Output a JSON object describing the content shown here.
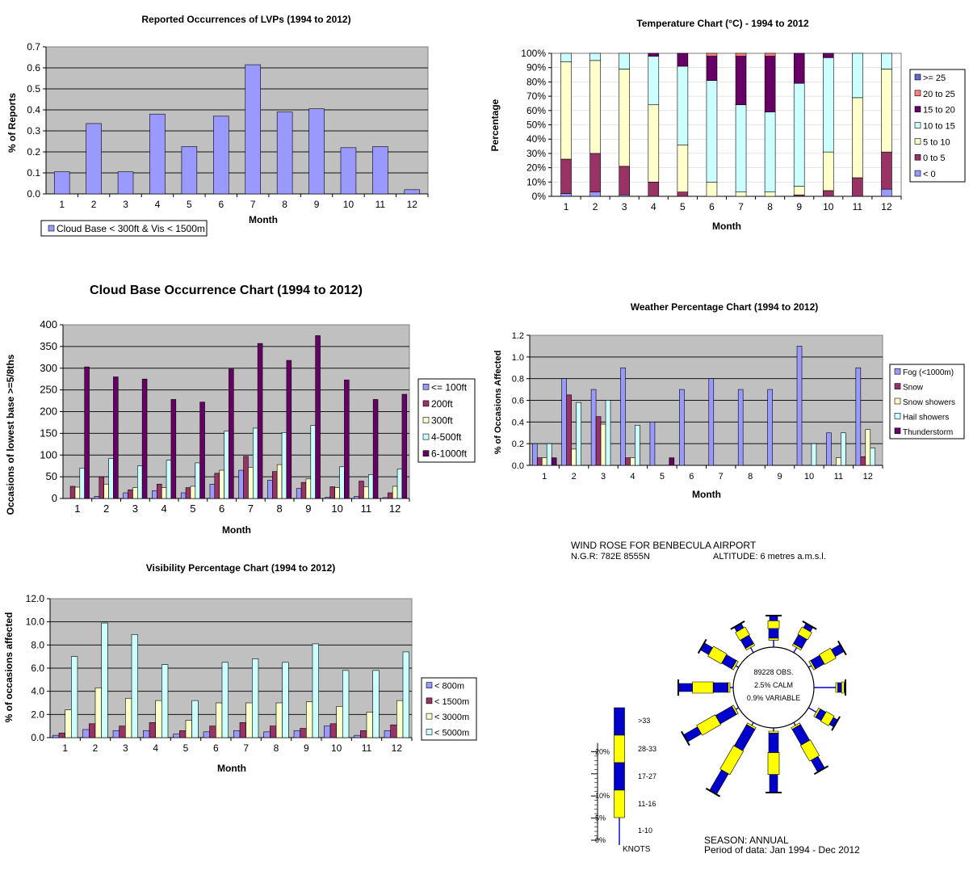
{
  "chart_data": [
    {
      "type": "bar",
      "title": "Reported Occurrences of LVPs (1994 to 2012)",
      "xlabel": "Month",
      "ylabel": "% of Reports",
      "ylim": [
        0,
        0.7
      ],
      "yticks": [
        "0.0",
        "0.1",
        "0.2",
        "0.3",
        "0.4",
        "0.5",
        "0.6",
        "0.7"
      ],
      "categories": [
        "1",
        "2",
        "3",
        "4",
        "5",
        "6",
        "7",
        "8",
        "9",
        "10",
        "11",
        "12"
      ],
      "series": [
        {
          "name": "Cloud Base < 300ft & Vis < 1500m",
          "color": "#9999FF",
          "values": [
            0.105,
            0.335,
            0.105,
            0.38,
            0.225,
            0.37,
            0.615,
            0.39,
            0.405,
            0.22,
            0.225,
            0.02
          ]
        }
      ],
      "grid": true,
      "legend": "bottom-left"
    },
    {
      "type": "bar",
      "stacked": true,
      "title": "Temperature Chart (°C) - 1994 to 2012",
      "xlabel": "Month",
      "ylabel": "Percentage",
      "ylim": [
        0,
        100
      ],
      "yticks": [
        "0%",
        "10%",
        "20%",
        "30%",
        "40%",
        "50%",
        "60%",
        "70%",
        "80%",
        "90%",
        "100%"
      ],
      "categories": [
        "1",
        "2",
        "3",
        "4",
        "5",
        "6",
        "7",
        "8",
        "9",
        "10",
        "11",
        "12"
      ],
      "series": [
        {
          "name": "< 0",
          "color": "#9999FF",
          "values": [
            2,
            3,
            1,
            0,
            0,
            0,
            0,
            0,
            0,
            0,
            0,
            5
          ]
        },
        {
          "name": "0 to 5",
          "color": "#993366",
          "values": [
            24,
            27,
            20,
            10,
            3,
            0,
            0,
            0,
            1,
            4,
            13,
            26
          ]
        },
        {
          "name": "5 to 10",
          "color": "#FFFFCC",
          "values": [
            68,
            65,
            68,
            54,
            33,
            10,
            3,
            3,
            6,
            27,
            56,
            58
          ]
        },
        {
          "name": "10 to 15",
          "color": "#CCFFFF",
          "values": [
            6,
            5,
            11,
            34,
            55,
            71,
            61,
            56,
            72,
            66,
            31,
            11
          ]
        },
        {
          "name": "15 to 20",
          "color": "#660066",
          "values": [
            0,
            0,
            0,
            2,
            9,
            17,
            34,
            39,
            21,
            3,
            0,
            0
          ]
        },
        {
          "name": "20 to 25",
          "color": "#FF8080",
          "values": [
            0,
            0,
            0,
            0,
            0,
            2,
            2,
            2,
            0,
            0,
            0,
            0
          ]
        },
        {
          "name": ">= 25",
          "color": "#6666CC",
          "values": [
            0,
            0,
            0,
            0,
            0,
            0,
            0,
            0,
            0,
            0,
            0,
            0
          ]
        }
      ],
      "legend": "right"
    },
    {
      "type": "bar",
      "title": "Cloud Base Occurrence Chart (1994 to 2012)",
      "xlabel": "Month",
      "ylabel": "Occasions of lowest base >=5/8ths",
      "ylim": [
        0,
        400
      ],
      "yticks": [
        "0",
        "50",
        "100",
        "150",
        "200",
        "250",
        "300",
        "350",
        "400"
      ],
      "categories": [
        "1",
        "2",
        "3",
        "4",
        "5",
        "6",
        "7",
        "8",
        "9",
        "10",
        "11",
        "12"
      ],
      "series": [
        {
          "name": "<= 100ft",
          "color": "#9999FF",
          "values": [
            0,
            5,
            13,
            18,
            13,
            33,
            65,
            42,
            23,
            3,
            5,
            2
          ]
        },
        {
          "name": "200ft",
          "color": "#993366",
          "values": [
            28,
            50,
            20,
            33,
            25,
            58,
            97,
            62,
            37,
            27,
            40,
            13
          ]
        },
        {
          "name": "300ft",
          "color": "#FFFFCC",
          "values": [
            26,
            33,
            25,
            25,
            28,
            65,
            72,
            78,
            45,
            25,
            27,
            28
          ]
        },
        {
          "name": "4-500ft",
          "color": "#CCFFFF",
          "values": [
            70,
            92,
            75,
            88,
            82,
            155,
            162,
            152,
            168,
            73,
            55,
            68
          ]
        },
        {
          "name": "6-1000ft",
          "color": "#660066",
          "values": [
            303,
            280,
            275,
            228,
            222,
            298,
            357,
            318,
            375,
            273,
            228,
            240
          ]
        }
      ],
      "grid": true,
      "legend": "right"
    },
    {
      "type": "bar",
      "title": "Weather Percentage Chart (1994 to 2012)",
      "xlabel": "Month",
      "ylabel": "% of Occasions Affected",
      "ylim": [
        0,
        1.2
      ],
      "yticks": [
        "0.0",
        "0.2",
        "0.4",
        "0.6",
        "0.8",
        "1.0",
        "1.2"
      ],
      "categories": [
        "1",
        "2",
        "3",
        "4",
        "5",
        "6",
        "7",
        "8",
        "9",
        "10",
        "11",
        "12"
      ],
      "series": [
        {
          "name": "Fog (<1000m)",
          "color": "#9999FF",
          "values": [
            0.2,
            0.8,
            0.7,
            0.9,
            0.4,
            0.7,
            0.8,
            0.7,
            0.7,
            1.1,
            0.3,
            0.9
          ]
        },
        {
          "name": "Snow",
          "color": "#993366",
          "values": [
            0.07,
            0.65,
            0.45,
            0.07,
            0,
            0,
            0,
            0,
            0,
            0,
            0,
            0.08
          ]
        },
        {
          "name": "Snow showers",
          "color": "#FFFFCC",
          "values": [
            0.07,
            0.15,
            0.38,
            0.07,
            0,
            0,
            0,
            0,
            0,
            0,
            0.07,
            0.33
          ]
        },
        {
          "name": "Hail showers",
          "color": "#CCFFFF",
          "values": [
            0.2,
            0.58,
            0.6,
            0.37,
            0,
            0,
            0,
            0,
            0,
            0.2,
            0.3,
            0.16
          ]
        },
        {
          "name": "Thunderstorm",
          "color": "#660066",
          "values": [
            0.07,
            0,
            0,
            0,
            0.07,
            0,
            0,
            0,
            0,
            0,
            0,
            0
          ]
        }
      ],
      "grid": true,
      "legend": "right"
    },
    {
      "type": "bar",
      "title": "Visibility Percentage Chart (1994 to 2012)",
      "xlabel": "Month",
      "ylabel": "% of occasions affected",
      "ylim": [
        0,
        12
      ],
      "yticks": [
        "0.0",
        "2.0",
        "4.0",
        "6.0",
        "8.0",
        "10.0",
        "12.0"
      ],
      "categories": [
        "1",
        "2",
        "3",
        "4",
        "5",
        "6",
        "7",
        "8",
        "9",
        "10",
        "11",
        "12"
      ],
      "series": [
        {
          "name": "< 800m",
          "color": "#9999FF",
          "values": [
            0.2,
            0.7,
            0.6,
            0.6,
            0.3,
            0.5,
            0.6,
            0.5,
            0.6,
            1.0,
            0.2,
            0.6
          ]
        },
        {
          "name": "< 1500m",
          "color": "#993366",
          "values": [
            0.4,
            1.2,
            1.0,
            1.3,
            0.6,
            1.0,
            1.3,
            1.0,
            0.8,
            1.2,
            0.6,
            1.1
          ]
        },
        {
          "name": "< 3000m",
          "color": "#FFFFCC",
          "values": [
            2.4,
            4.3,
            3.4,
            3.2,
            1.5,
            3.0,
            3.0,
            3.0,
            3.1,
            2.7,
            2.2,
            3.2
          ]
        },
        {
          "name": "< 5000m",
          "color": "#CCFFFF",
          "values": [
            7.0,
            9.9,
            8.9,
            6.3,
            3.2,
            6.5,
            6.8,
            6.5,
            8.1,
            5.8,
            5.8,
            7.4
          ]
        }
      ],
      "grid": true,
      "legend": "right"
    }
  ],
  "windrose": {
    "title": "WIND ROSE FOR BENBECULA AIRPORT",
    "ngr": "N.G.R:  782E  8555N",
    "altitude": "ALTITUDE:    6 metres a.m.s.l.",
    "center_lines": [
      "89228 OBS.",
      "2.5% CALM",
      "0.9% VARIABLE"
    ],
    "season": "SEASON: ANNUAL",
    "period": "Period of data: Jan 1994 - Dec 2012",
    "colors": {
      "dark": "#0000CC",
      "light": "#FFFF00",
      "arm": "#0000CC"
    },
    "scale_labels": [
      "20%",
      "10%",
      "5%",
      "0%"
    ],
    "speed_labels": [
      ">33",
      "28-33",
      "17-27",
      "11-16",
      "1-10"
    ],
    "speed_unit": "KNOTS",
    "directions": [
      {
        "deg": 0,
        "total": 4.0,
        "segs": [
          0.3,
          1.5,
          1.2,
          0.8
        ]
      },
      {
        "deg": 30,
        "total": 4.0,
        "segs": [
          0.3,
          1.6,
          1.3,
          0.8
        ]
      },
      {
        "deg": 60,
        "total": 5.5,
        "segs": [
          0.3,
          1.6,
          2.0,
          1.6
        ]
      },
      {
        "deg": 90,
        "total": 1.5,
        "segs": [
          0.3,
          0.6,
          0.4,
          0.2
        ]
      },
      {
        "deg": 120,
        "total": 3.5,
        "segs": [
          0.3,
          1.0,
          1.4,
          0.8
        ]
      },
      {
        "deg": 150,
        "total": 8.0,
        "segs": [
          0.3,
          2.8,
          2.8,
          2.1
        ]
      },
      {
        "deg": 180,
        "total": 9.5,
        "segs": [
          0.3,
          3.0,
          3.4,
          2.8
        ]
      },
      {
        "deg": 210,
        "total": 12.0,
        "segs": [
          0.3,
          3.8,
          4.2,
          3.7
        ]
      },
      {
        "deg": 240,
        "total": 9.0,
        "segs": [
          0.3,
          2.9,
          3.3,
          2.5
        ]
      },
      {
        "deg": 270,
        "total": 8.0,
        "segs": [
          0.3,
          2.3,
          3.2,
          2.2
        ]
      },
      {
        "deg": 300,
        "total": 6.0,
        "segs": [
          0.3,
          1.8,
          2.4,
          1.5
        ]
      },
      {
        "deg": 330,
        "total": 4.0,
        "segs": [
          0.3,
          1.5,
          1.4,
          0.8
        ]
      }
    ]
  }
}
